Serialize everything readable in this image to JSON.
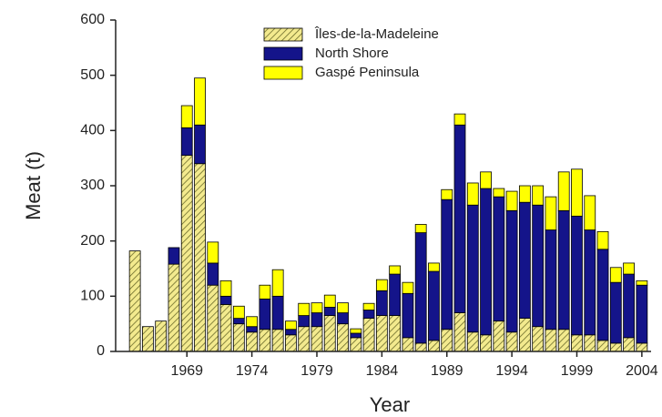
{
  "chart_data": {
    "type": "stacked_bar",
    "x_label": "Year",
    "y_label": "Meat (t)",
    "categories": [
      null,
      null,
      null,
      null,
      "1969",
      null,
      null,
      null,
      null,
      "1974",
      null,
      null,
      null,
      null,
      "1979",
      null,
      null,
      null,
      null,
      "1984",
      null,
      null,
      null,
      null,
      "1989",
      null,
      null,
      null,
      null,
      "1994",
      null,
      null,
      null,
      null,
      "1999",
      null,
      null,
      null,
      null,
      "2004"
    ],
    "series": [
      {
        "name": "Îles-de-la-Madeleine",
        "color": "#f3ea8e",
        "hatch": true,
        "values": [
          182,
          45,
          55,
          158,
          355,
          340,
          120,
          85,
          50,
          35,
          40,
          40,
          30,
          45,
          45,
          65,
          50,
          25,
          60,
          65,
          65,
          25,
          15,
          20,
          40,
          70,
          35,
          30,
          55,
          35,
          60,
          45,
          40,
          40,
          30,
          30,
          20,
          15,
          25,
          15
        ]
      },
      {
        "name": "North Shore",
        "color": "#14148a",
        "values": [
          0,
          0,
          0,
          30,
          50,
          70,
          40,
          15,
          10,
          10,
          55,
          60,
          10,
          20,
          25,
          15,
          20,
          8,
          15,
          45,
          75,
          80,
          200,
          125,
          235,
          340,
          230,
          265,
          225,
          220,
          210,
          220,
          180,
          215,
          215,
          190,
          165,
          110,
          115,
          105
        ]
      },
      {
        "name": "Gaspé Peninsula",
        "color": "#ffff00",
        "values": [
          0,
          0,
          0,
          0,
          40,
          85,
          38,
          28,
          22,
          18,
          25,
          48,
          15,
          22,
          18,
          22,
          18,
          8,
          12,
          20,
          15,
          20,
          15,
          15,
          18,
          20,
          40,
          30,
          15,
          35,
          30,
          35,
          60,
          70,
          85,
          62,
          32,
          27,
          20,
          8
        ]
      }
    ],
    "ylim": [
      0,
      600
    ],
    "yticks": [
      0,
      100,
      200,
      300,
      400,
      500,
      600
    ],
    "legend": "top"
  }
}
